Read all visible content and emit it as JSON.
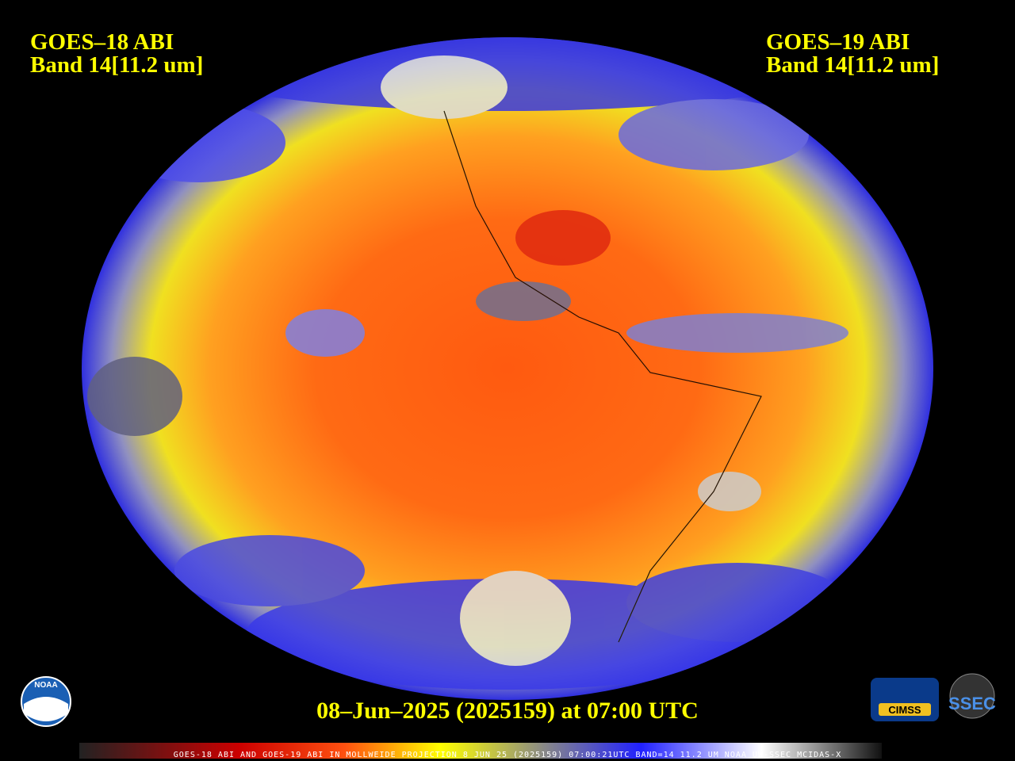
{
  "header": {
    "left": {
      "line1": "GOES–18 ABI",
      "line2": "Band 14[11.2 um]"
    },
    "right": {
      "line1": "GOES–19 ABI",
      "line2": "Band 14[11.2 um]"
    }
  },
  "footer": {
    "timestamp": "08–Jun–2025 (2025159) at 07:00 UTC",
    "banner": "GOES-18 ABI AND GOES-19 ABI IN MOLLWEIDE PROJECTION 8 JUN 25 (2025159) 07:00:21UTC BAND=14 11.2 UM NOAA UW-SSEC MCIDAS-X"
  },
  "logos": {
    "noaa": "NOAA",
    "cimss": "CIMSS",
    "ssec": "SSEC"
  }
}
